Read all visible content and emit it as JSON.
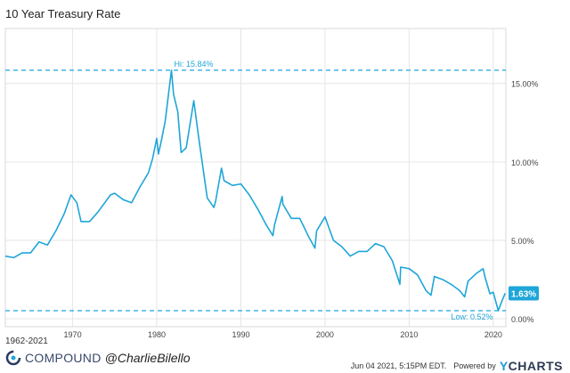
{
  "chart_data": {
    "type": "line",
    "title": "10 Year Treasury Rate",
    "date_range": "1962-2021",
    "line_color": "#1ea6d8",
    "x_range": [
      1962,
      2021.5
    ],
    "y_range": [
      -0.5,
      18.5
    ],
    "y_ticks": [
      {
        "value": 0,
        "label": "0.00%"
      },
      {
        "value": 5,
        "label": "5.00%"
      },
      {
        "value": 10,
        "label": "10.00%"
      },
      {
        "value": 15,
        "label": "15.00%"
      }
    ],
    "x_ticks": [
      {
        "value": 1970,
        "label": "1970"
      },
      {
        "value": 1980,
        "label": "1980"
      },
      {
        "value": 1990,
        "label": "1990"
      },
      {
        "value": 2000,
        "label": "2000"
      },
      {
        "value": 2010,
        "label": "2010"
      },
      {
        "value": 2020,
        "label": "2020"
      }
    ],
    "high": {
      "year": 1981.75,
      "value": 15.84,
      "label": "Hi: 15.84%"
    },
    "low": {
      "year": 2020.6,
      "value": 0.52,
      "label": "Low: 0.52%"
    },
    "last": {
      "year": 2021.42,
      "value": 1.63,
      "label": "1.63%"
    },
    "x": [
      1962,
      1963,
      1964,
      1965,
      1966,
      1967,
      1968,
      1969,
      1969.8,
      1970.5,
      1971,
      1972,
      1973,
      1974.5,
      1975,
      1976,
      1977,
      1978,
      1979,
      1979.5,
      1980,
      1980.2,
      1980.6,
      1981,
      1981.75,
      1982,
      1982.5,
      1982.9,
      1983.5,
      1984.4,
      1985,
      1986,
      1986.8,
      1987,
      1987.7,
      1988,
      1989,
      1990,
      1991,
      1992,
      1993,
      1993.8,
      1994,
      1994.9,
      1995,
      1996,
      1997,
      1998,
      1998.8,
      1999,
      2000,
      2001,
      2002,
      2003,
      2004,
      2005,
      2006,
      2007,
      2008,
      2008.9,
      2009,
      2010,
      2011,
      2012,
      2012.6,
      2013,
      2014,
      2015,
      2016,
      2016.6,
      2017,
      2018,
      2018.8,
      2019,
      2019.6,
      2020,
      2020.6,
      2021,
      2021.42
    ],
    "y": [
      4.0,
      3.9,
      4.2,
      4.2,
      4.9,
      4.7,
      5.6,
      6.7,
      7.9,
      7.4,
      6.2,
      6.2,
      6.8,
      7.9,
      8.0,
      7.6,
      7.4,
      8.4,
      9.3,
      10.2,
      11.5,
      10.5,
      11.5,
      12.6,
      15.84,
      14.3,
      13.2,
      10.6,
      10.9,
      13.9,
      11.5,
      7.7,
      7.1,
      7.5,
      9.6,
      8.8,
      8.5,
      8.6,
      7.9,
      7.0,
      6.0,
      5.3,
      6.0,
      7.8,
      7.3,
      6.4,
      6.4,
      5.3,
      4.5,
      5.6,
      6.5,
      5.0,
      4.6,
      4.0,
      4.3,
      4.3,
      4.8,
      4.6,
      3.7,
      2.2,
      3.3,
      3.2,
      2.8,
      1.8,
      1.5,
      2.7,
      2.5,
      2.2,
      1.8,
      1.4,
      2.4,
      2.9,
      3.2,
      2.7,
      1.6,
      1.7,
      0.52,
      1.1,
      1.63
    ]
  }
}
